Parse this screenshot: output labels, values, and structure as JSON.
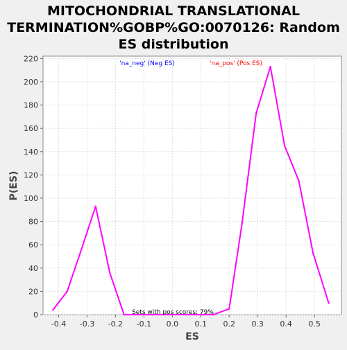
{
  "chart_data": {
    "type": "line",
    "title_lines": [
      "MITOCHONDRIAL TRANSLATIONAL",
      "TERMINATION%GOBP%GO:0070126: Random",
      "ES distribution"
    ],
    "xlabel": "ES",
    "ylabel": "P(ES)",
    "xlim": [
      -0.455,
      0.595
    ],
    "ylim": [
      0,
      222
    ],
    "xticks": [
      -0.4,
      -0.3,
      -0.2,
      -0.1,
      0.0,
      0.1,
      0.2,
      0.3,
      0.4,
      0.5
    ],
    "xtick_labels": [
      "-0.4",
      "-0.3",
      "-0.2",
      "-0.1",
      "0.0",
      "0.1",
      "0.2",
      "0.3",
      "0.4",
      "0.5"
    ],
    "yticks": [
      0,
      20,
      40,
      60,
      80,
      100,
      120,
      140,
      160,
      180,
      200,
      220
    ],
    "ytick_labels": [
      "0",
      "20",
      "40",
      "60",
      "80",
      "100",
      "120",
      "140",
      "160",
      "180",
      "200",
      "220"
    ],
    "grid": true,
    "legend": {
      "placement": "top",
      "entries": [
        {
          "label": "'na_neg' (Neg ES)",
          "color": "#0000ff"
        },
        {
          "label": "'na_pos' (Pos ES)",
          "color": "#ff0000"
        }
      ]
    },
    "annotation": "Sets with pos scores: 79%",
    "series": [
      {
        "color": "#ff00ff",
        "x": [
          -0.42,
          -0.37,
          -0.32,
          -0.27,
          -0.22,
          -0.17,
          -0.12,
          -0.07,
          -0.02,
          0.03,
          0.08,
          0.145,
          0.2,
          0.245,
          0.295,
          0.345,
          0.395,
          0.445,
          0.495,
          0.55
        ],
        "y": [
          4,
          20,
          56,
          93,
          36,
          0,
          0,
          0,
          0,
          0,
          0,
          0,
          5,
          78,
          173,
          213,
          145,
          115,
          53,
          10
        ]
      }
    ]
  }
}
